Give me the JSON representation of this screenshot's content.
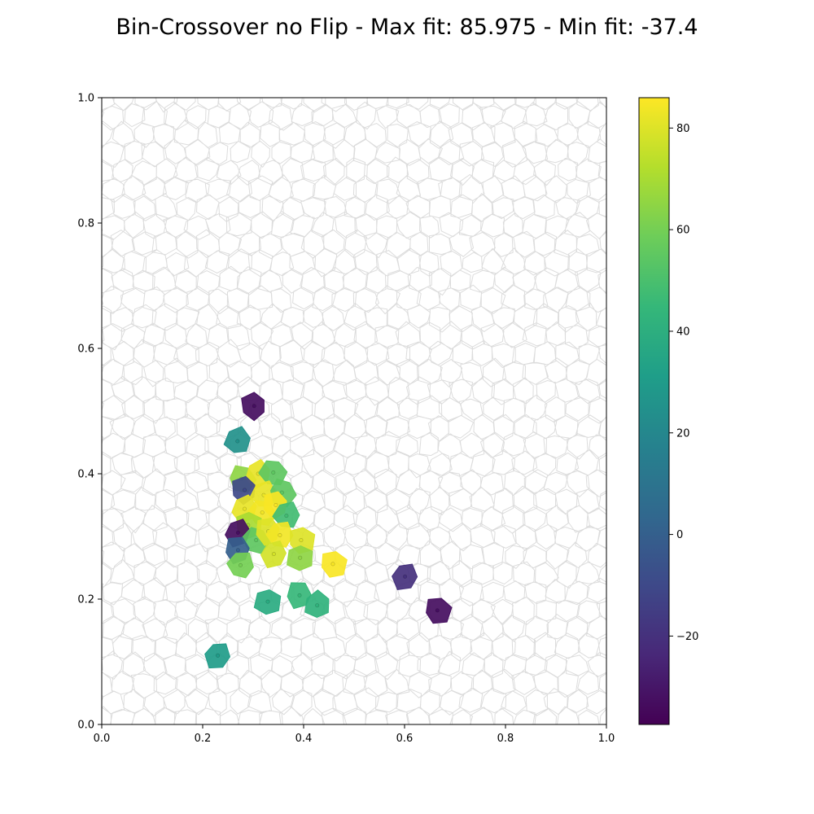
{
  "chart_data": {
    "type": "heatmap",
    "title": "Bin-Crossover no Flip - Max fit: 85.975 - Min fit: -37.4",
    "xlabel": "",
    "ylabel": "",
    "xlim": [
      0.0,
      1.0
    ],
    "ylim": [
      0.0,
      1.0
    ],
    "x_ticks": [
      "0.0",
      "0.2",
      "0.4",
      "0.6",
      "0.8",
      "1.0"
    ],
    "y_ticks": [
      "0.0",
      "0.2",
      "0.4",
      "0.6",
      "0.8",
      "1.0"
    ],
    "grid": false,
    "colormap": "viridis",
    "colorbar": {
      "range": [
        -37.4,
        85.975
      ],
      "ticks": [
        -20,
        0,
        20,
        40,
        60,
        80
      ],
      "tick_labels": [
        "−20",
        "0",
        "20",
        "40",
        "60",
        "80"
      ]
    },
    "cells": [
      {
        "x": 0.302,
        "y": 0.508,
        "value": -33
      },
      {
        "x": 0.269,
        "y": 0.452,
        "value": 25
      },
      {
        "x": 0.277,
        "y": 0.392,
        "value": 65
      },
      {
        "x": 0.31,
        "y": 0.4,
        "value": 82
      },
      {
        "x": 0.34,
        "y": 0.402,
        "value": 55
      },
      {
        "x": 0.283,
        "y": 0.374,
        "value": -10
      },
      {
        "x": 0.321,
        "y": 0.366,
        "value": 82
      },
      {
        "x": 0.357,
        "y": 0.37,
        "value": 55
      },
      {
        "x": 0.283,
        "y": 0.344,
        "value": 82
      },
      {
        "x": 0.318,
        "y": 0.338,
        "value": 84
      },
      {
        "x": 0.345,
        "y": 0.35,
        "value": 85
      },
      {
        "x": 0.366,
        "y": 0.333,
        "value": 48
      },
      {
        "x": 0.29,
        "y": 0.318,
        "value": 70
      },
      {
        "x": 0.27,
        "y": 0.306,
        "value": -33
      },
      {
        "x": 0.306,
        "y": 0.294,
        "value": 55
      },
      {
        "x": 0.33,
        "y": 0.308,
        "value": 80
      },
      {
        "x": 0.353,
        "y": 0.302,
        "value": 84
      },
      {
        "x": 0.395,
        "y": 0.294,
        "value": 80
      },
      {
        "x": 0.341,
        "y": 0.272,
        "value": 78
      },
      {
        "x": 0.393,
        "y": 0.266,
        "value": 65
      },
      {
        "x": 0.27,
        "y": 0.278,
        "value": 0
      },
      {
        "x": 0.275,
        "y": 0.254,
        "value": 60
      },
      {
        "x": 0.458,
        "y": 0.256,
        "value": 85
      },
      {
        "x": 0.601,
        "y": 0.236,
        "value": -20
      },
      {
        "x": 0.329,
        "y": 0.196,
        "value": 38
      },
      {
        "x": 0.392,
        "y": 0.206,
        "value": 45
      },
      {
        "x": 0.427,
        "y": 0.19,
        "value": 42
      },
      {
        "x": 0.665,
        "y": 0.182,
        "value": -33
      },
      {
        "x": 0.23,
        "y": 0.11,
        "value": 30
      }
    ]
  }
}
